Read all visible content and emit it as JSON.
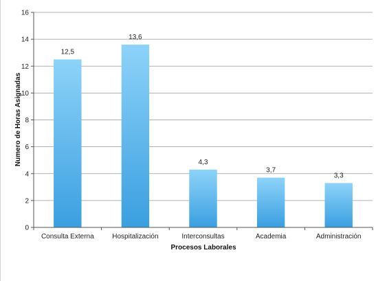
{
  "chart_data": {
    "type": "bar",
    "title": "",
    "xlabel": "Procesos Laborales",
    "ylabel": "Numero de Horas Asignadas",
    "categories": [
      "Consulta Externa",
      "Hospitalización",
      "Interconsultas",
      "Academia",
      "Administración"
    ],
    "values": [
      12.5,
      13.6,
      4.3,
      3.7,
      3.3
    ],
    "value_labels": [
      "12,5",
      "13,6",
      "4,3",
      "3,7",
      "3,3"
    ],
    "ylim": [
      0,
      16
    ],
    "yticks": [
      0,
      2,
      4,
      6,
      8,
      10,
      12,
      14,
      16
    ],
    "grid": true,
    "legend": "none",
    "colors": {
      "bar_top": "#8dd3f9",
      "bar_bottom": "#3a9fe0",
      "grid": "#9a9a9a",
      "axis": "#555555"
    }
  }
}
